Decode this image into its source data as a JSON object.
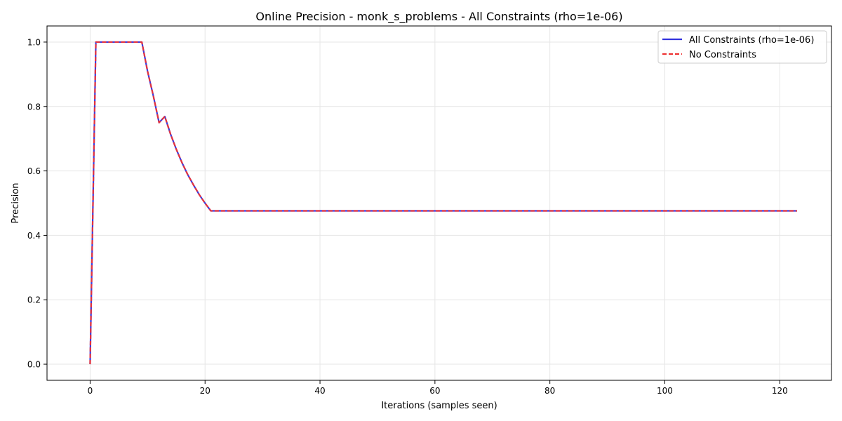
{
  "chart_data": {
    "type": "line",
    "title": "Online Precision - monk_s_problems - All Constraints (rho=1e-06)",
    "xlabel": "Iterations (samples seen)",
    "ylabel": "Precision",
    "xlim": [
      -7.5,
      129
    ],
    "ylim": [
      -0.05,
      1.05
    ],
    "xticks": [
      0,
      20,
      40,
      60,
      80,
      100,
      120
    ],
    "yticks": [
      0.0,
      0.2,
      0.4,
      0.6,
      0.8,
      1.0
    ],
    "ytick_labels": [
      "0.0",
      "0.2",
      "0.4",
      "0.6",
      "0.8",
      "1.0"
    ],
    "grid": true,
    "legend_position": "top-right",
    "series": [
      {
        "name": "All Constraints (rho=1e-06)",
        "color": "#3333dd",
        "style": "solid",
        "x": [
          0,
          1,
          2,
          3,
          4,
          5,
          6,
          7,
          8,
          9,
          10,
          11,
          12,
          13,
          14,
          15,
          16,
          17,
          18,
          19,
          20,
          21,
          123
        ],
        "y": [
          0.0,
          1.0,
          1.0,
          1.0,
          1.0,
          1.0,
          1.0,
          1.0,
          1.0,
          1.0,
          0.909,
          0.833,
          0.75,
          0.769,
          0.714,
          0.667,
          0.625,
          0.588,
          0.556,
          0.526,
          0.5,
          0.476,
          0.476
        ]
      },
      {
        "name": "No Constraints",
        "color": "#ee3333",
        "style": "dashed",
        "x": [
          0,
          1,
          2,
          3,
          4,
          5,
          6,
          7,
          8,
          9,
          10,
          11,
          12,
          13,
          14,
          15,
          16,
          17,
          18,
          19,
          20,
          21,
          123
        ],
        "y": [
          0.0,
          1.0,
          1.0,
          1.0,
          1.0,
          1.0,
          1.0,
          1.0,
          1.0,
          1.0,
          0.909,
          0.833,
          0.75,
          0.769,
          0.714,
          0.667,
          0.625,
          0.588,
          0.556,
          0.526,
          0.5,
          0.476,
          0.476
        ]
      }
    ]
  }
}
